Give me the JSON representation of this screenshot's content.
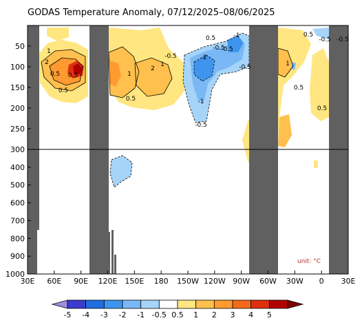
{
  "chart_data": {
    "type": "heatmap",
    "title": "GODAS Temperature Anomaly, 07/12/2025–08/06/2025",
    "unit_label": "unit: °C",
    "x_ticks": [
      "30E",
      "60E",
      "90E",
      "120E",
      "150E",
      "180",
      "150W",
      "120W",
      "90W",
      "60W",
      "30W",
      "0",
      "30E"
    ],
    "y_ticks_upper": [
      50,
      100,
      150,
      200,
      250,
      300
    ],
    "y_ticks_lower": [
      400,
      500,
      600,
      700,
      800,
      900,
      1000
    ],
    "y_split_depth": 300,
    "colorbar": {
      "labels": [
        "-5",
        "-4",
        "-3",
        "-2",
        "-1",
        "-0.5",
        "0.5",
        "1",
        "2",
        "3",
        "4",
        "5"
      ],
      "colors": [
        "#9d8fe0",
        "#3b3bd0",
        "#1f6fe0",
        "#3f95ee",
        "#7ab8f5",
        "#a6d4f9",
        "#ffffff",
        "#ffe680",
        "#ffc04d",
        "#ff9a30",
        "#f56a18",
        "#e03010",
        "#b00000",
        "#800000"
      ]
    },
    "contour_labels": [
      "1",
      "2",
      "0.5",
      "0.5",
      "0.5",
      "1",
      "2",
      "1",
      "0.5",
      "-0.5",
      "0.5",
      "-0.5",
      "-1",
      "-2",
      "-1",
      "-0.5",
      "-0.5",
      "-0.5",
      "1",
      "0.5",
      "0.5",
      "0.5",
      "-0.5",
      "-0.5"
    ],
    "land_color": "#606060"
  }
}
